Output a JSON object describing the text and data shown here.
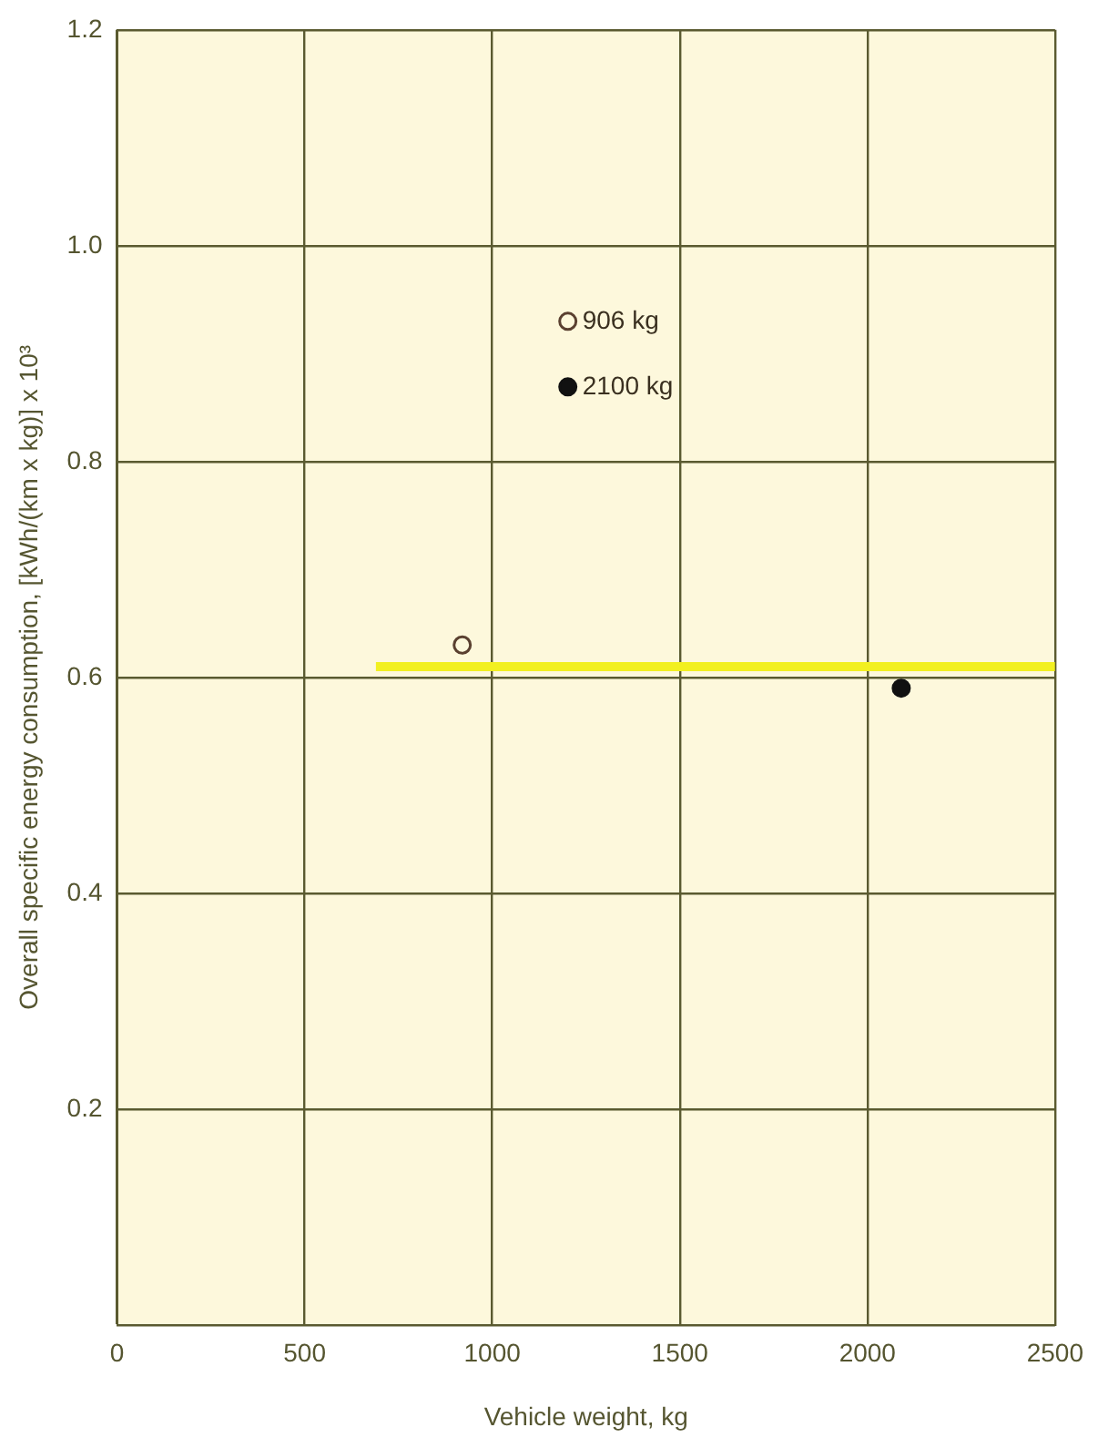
{
  "chart_data": {
    "type": "scatter",
    "xlabel": "Vehicle weight, kg",
    "ylabel": "Overall specific energy consumption, [kWh/(km x kg)] x 10³",
    "xlim": [
      0,
      2500
    ],
    "xticks": [
      0,
      500,
      1000,
      1500,
      2000,
      2500
    ],
    "ylim": [
      0,
      1.2
    ],
    "yticks": [
      {
        "value": 0,
        "label": null
      },
      0.2,
      0.4,
      0.6,
      0.8,
      {
        "value": 1,
        "label": "1.0"
      },
      1.2
    ],
    "grid": true,
    "legend": "top",
    "marker": "circle",
    "series": [
      {
        "name": "906 kg",
        "color": "#5a4030",
        "x": [
          920
        ],
        "values": [
          0.63
        ]
      },
      {
        "name": "2100 kg",
        "color": "#111111",
        "x": [
          2090
        ],
        "values": [
          0.59
        ]
      },
      {
        "type": "line",
        "marker": "none",
        "color": "#f2f020",
        "x": [
          690,
          2500
        ],
        "values": [
          0.61,
          0.61
        ]
      }
    ]
  }
}
